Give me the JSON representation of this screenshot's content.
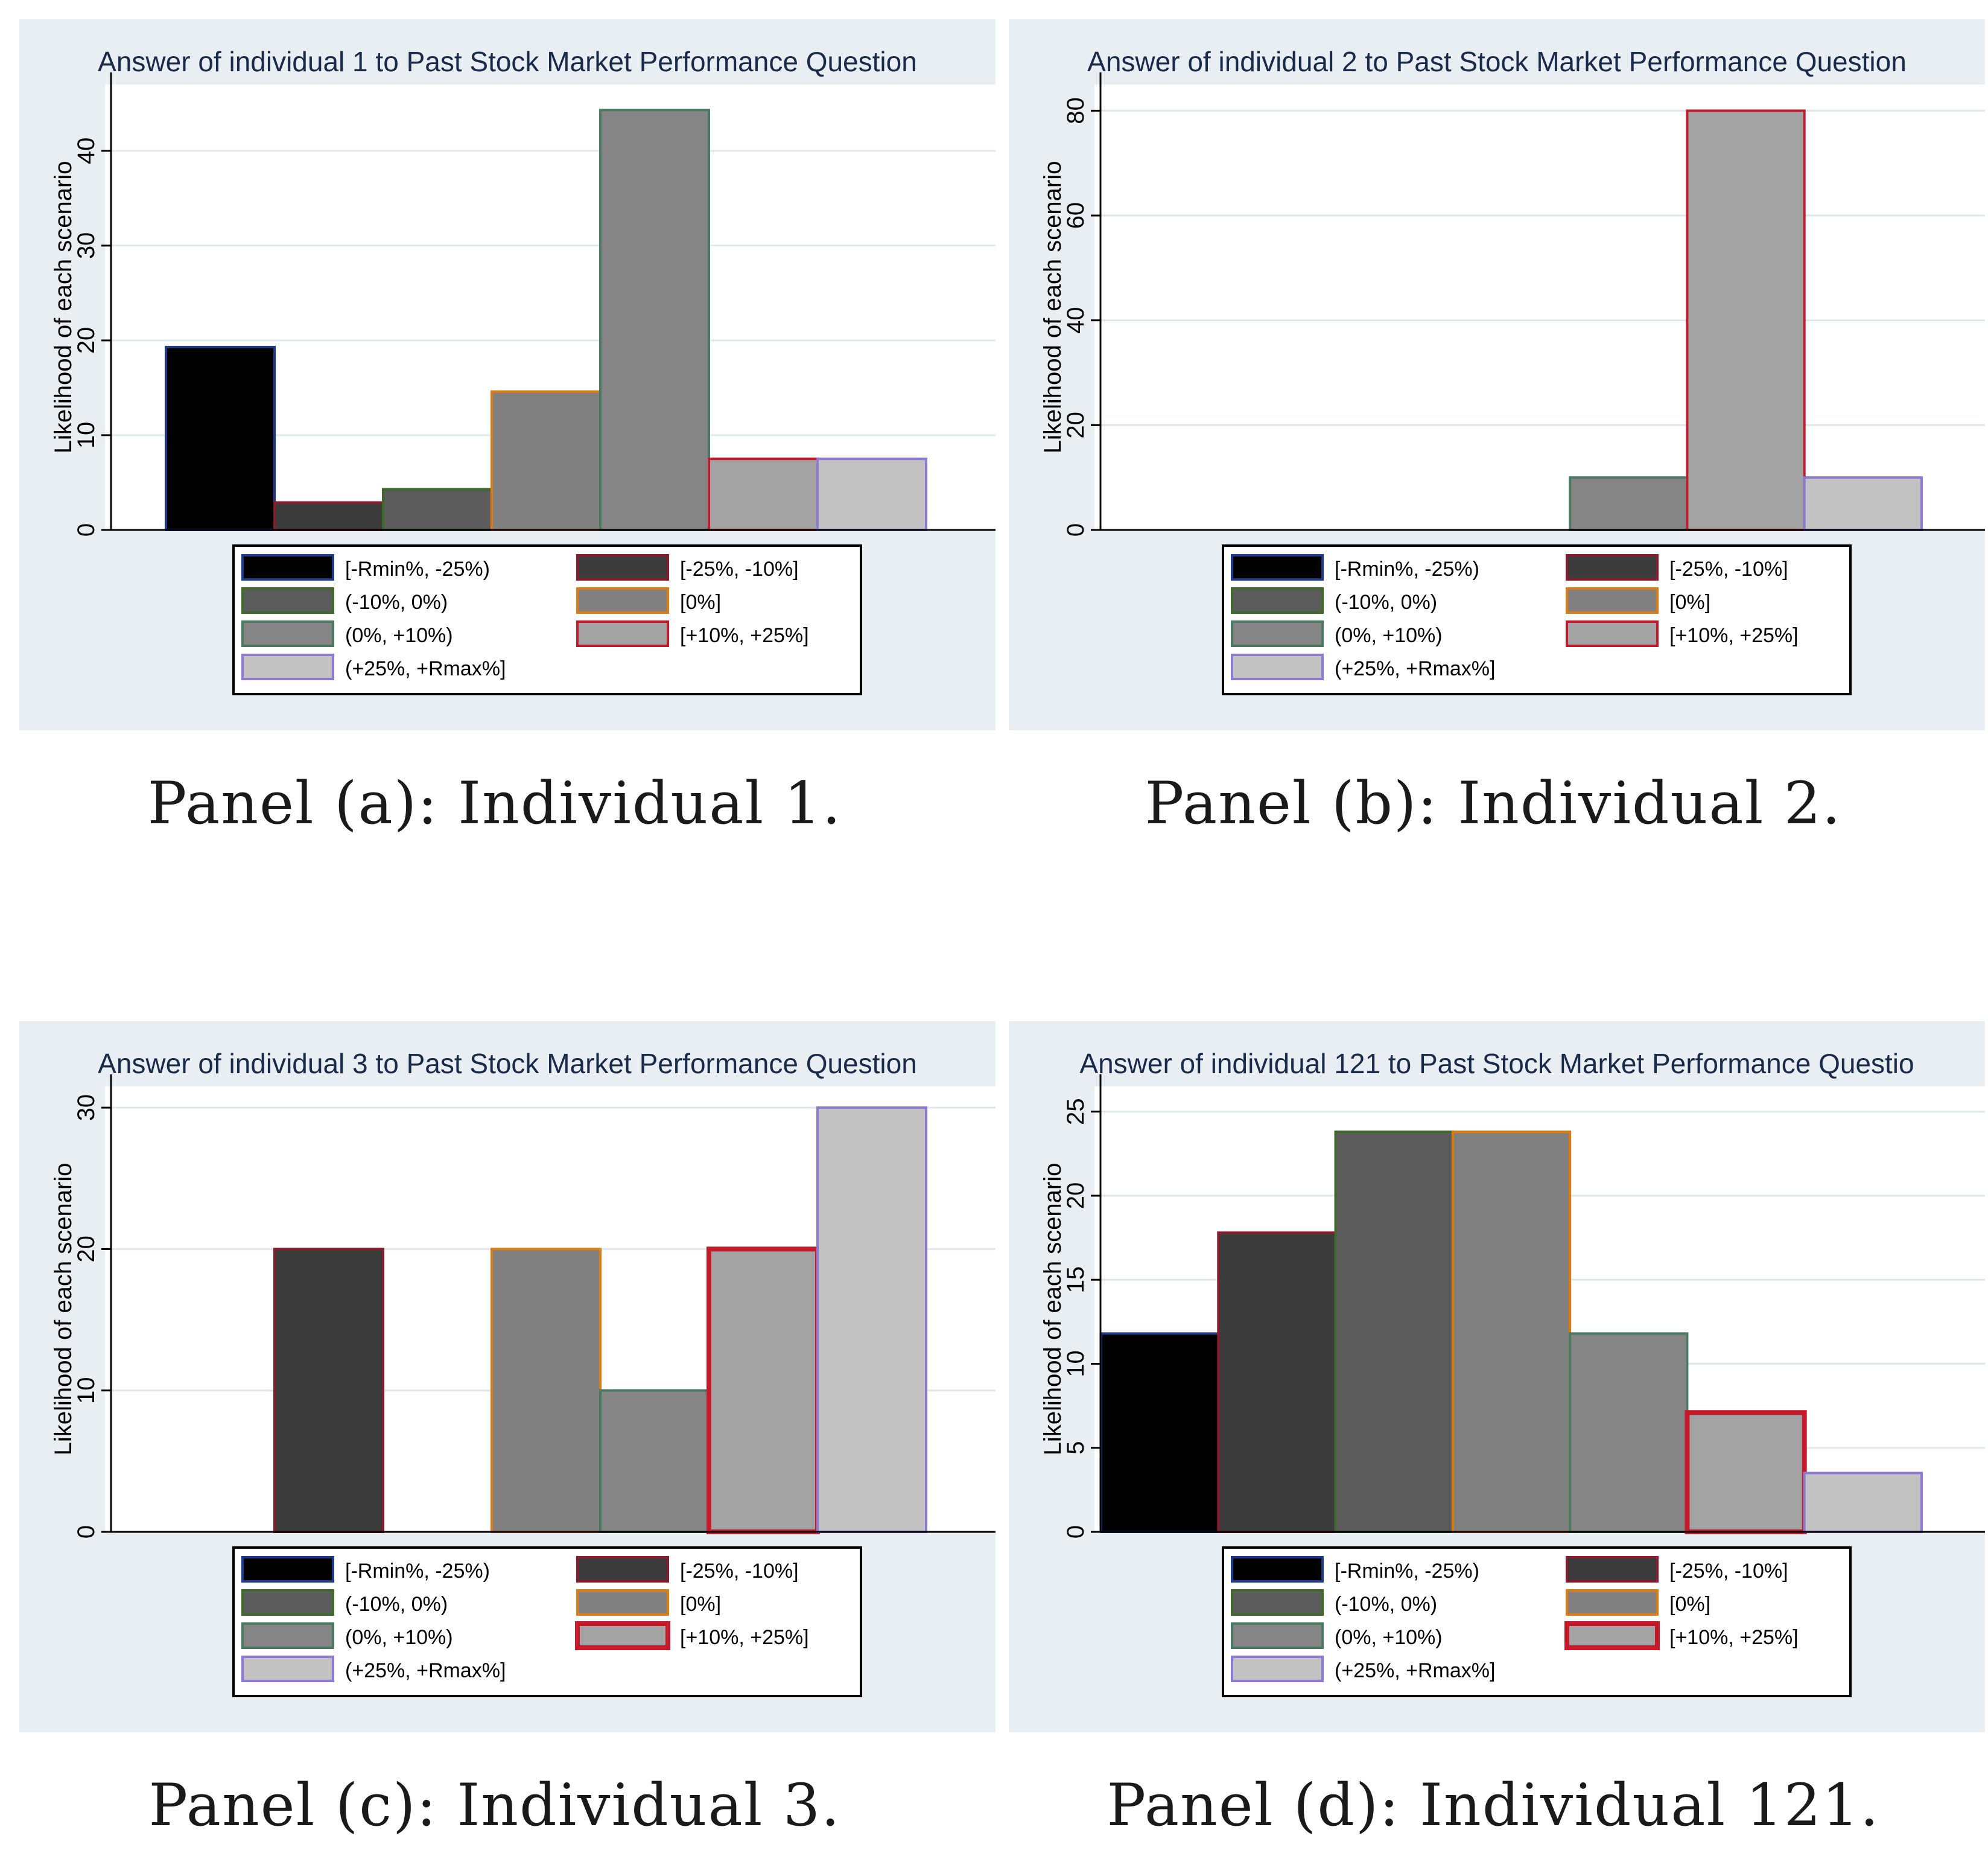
{
  "legend_items": [
    {
      "label": "[-Rmin%, -25%)",
      "fill": "#000000",
      "stroke": "#1e3a8a"
    },
    {
      "label": "[-25%, -10%]",
      "fill": "#3b3b3b",
      "stroke": "#8b1a2a"
    },
    {
      "label": "(-10%, 0%)",
      "fill": "#5c5c5c",
      "stroke": "#3f6b2a"
    },
    {
      "label": "[0%]",
      "fill": "#808080",
      "stroke": "#e07b10"
    },
    {
      "label": "(0%, +10%)",
      "fill": "#858585",
      "stroke": "#4a7a62"
    },
    {
      "label": "[+10%, +25%]",
      "fill": "#a3a3a3",
      "stroke": "#c41a2a"
    },
    {
      "label": "(+25%, +Rmax%]",
      "fill": "#c2c2c2",
      "stroke": "#8c7ad6"
    }
  ],
  "chart_data": [
    {
      "type": "bar",
      "title": "Answer of individual 1 to Past Stock Market Performance Question",
      "ylabel": "Likelihood of each scenario",
      "caption": "Panel (a): Individual 1.",
      "ylim": [
        0,
        47
      ],
      "yticks": [
        0,
        10,
        20,
        30,
        40
      ],
      "categories": [
        "[-Rmin%, -25%)",
        "[-25%, -10%]",
        "(-10%, 0%)",
        "[0%]",
        "(0%, +10%)",
        "[+10%, +25%]",
        "(+25%, +Rmax%]"
      ],
      "values": [
        19.3,
        2.9,
        4.3,
        14.6,
        44.3,
        7.5,
        7.5
      ]
    },
    {
      "type": "bar",
      "title": "Answer of individual 2 to Past Stock Market Performance Question",
      "ylabel": "Likelihood of each scenario",
      "caption": "Panel (b): Individual 2.",
      "ylim": [
        0,
        85
      ],
      "yticks": [
        0,
        20,
        40,
        60,
        80
      ],
      "categories": [
        "[-Rmin%, -25%)",
        "[-25%, -10%]",
        "(-10%, 0%)",
        "[0%]",
        "(0%, +10%)",
        "[+10%, +25%]",
        "(+25%, +Rmax%]"
      ],
      "values": [
        0,
        0,
        0,
        0,
        10,
        80,
        10
      ]
    },
    {
      "type": "bar",
      "title": "Answer of individual 3 to Past Stock Market Performance Question",
      "ylabel": "Likelihood of each scenario",
      "caption": "Panel (c): Individual 3.",
      "ylim": [
        0,
        31.5
      ],
      "yticks": [
        0,
        10,
        20,
        30
      ],
      "categories": [
        "[-Rmin%, -25%)",
        "[-25%, -10%]",
        "(-10%, 0%)",
        "[0%]",
        "(0%, +10%)",
        "[+10%, +25%]",
        "(+25%, +Rmax%]"
      ],
      "values": [
        0,
        20,
        0,
        20,
        10,
        20,
        30
      ]
    },
    {
      "type": "bar",
      "title": "Answer of individual 121 to Past Stock Market Performance Questio",
      "ylabel": "Likelihood of each scenario",
      "caption": "Panel (d): Individual 121.",
      "ylim": [
        0,
        26.5
      ],
      "yticks": [
        0,
        5,
        10,
        15,
        20,
        25
      ],
      "categories": [
        "[-Rmin%, -25%)",
        "[-25%, -10%]",
        "(-10%, 0%)",
        "[0%]",
        "(0%, +10%)",
        "[+10%, +25%]",
        "(+25%, +Rmax%]"
      ],
      "values": [
        11.8,
        17.8,
        23.8,
        23.8,
        11.8,
        7.1,
        3.5
      ]
    }
  ]
}
